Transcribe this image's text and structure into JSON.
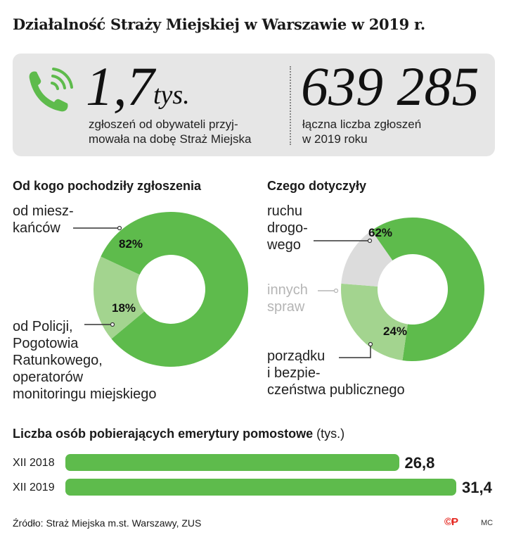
{
  "title": "Działalność Straży Miejskiej w Warszawie w 2019 r.",
  "stats": {
    "calls_per_day": {
      "number": "1,7",
      "unit": "tys.",
      "description_line1": "zgłoszeń od obywateli przyj-",
      "description_line2": "mowała na dobę Straż Miejska"
    },
    "total_calls": {
      "number": "639 285",
      "description_line1": "łączna liczba zgłoszeń",
      "description_line2": "w 2019 roku"
    }
  },
  "colors": {
    "accent_green": "#5ebb4c",
    "light_green": "#a3d48f",
    "grey": "#dcdcdc",
    "panel": "#e6e6e6",
    "logo_red": "#e5261f"
  },
  "chart_data": [
    {
      "type": "pie",
      "variant": "donut",
      "title": "Od kogo pochodziły zgłoszenia",
      "slices": [
        {
          "label_lines": [
            "od miesz-",
            "kańców"
          ],
          "value": 82,
          "value_label": "82%",
          "color": "#5ebb4c"
        },
        {
          "label_lines": [
            "od Policji,",
            "Pogotowia",
            "Ratunkowego,",
            "operatorów",
            "monitoringu miejskiego"
          ],
          "value": 18,
          "value_label": "18%",
          "color": "#a3d48f"
        }
      ]
    },
    {
      "type": "pie",
      "variant": "donut",
      "title": "Czego dotyczyły",
      "slices": [
        {
          "label_lines": [
            "ruchu",
            "drogo-",
            "wego"
          ],
          "value": 62,
          "value_label": "62%",
          "color": "#5ebb4c"
        },
        {
          "label_lines": [
            "porządku",
            "i bezpie-",
            "czeństwa publicznego"
          ],
          "value": 24,
          "value_label": "24%",
          "color": "#a3d48f"
        },
        {
          "label_lines": [
            "innych",
            "spraw"
          ],
          "value": 14,
          "value_label": "",
          "color": "#dcdcdc"
        }
      ]
    },
    {
      "type": "bar",
      "orientation": "horizontal",
      "title": "Liczba osób pobierających emerytury pomostowe",
      "unit": "(tys.)",
      "categories": [
        "XII 2018",
        "XII 2019"
      ],
      "values": [
        26.8,
        31.4
      ],
      "value_labels": [
        "26,8",
        "31,4"
      ],
      "color": "#5ebb4c"
    }
  ],
  "footer": {
    "source": "Źródło: Straż Miejska m.st. Warszawy, ZUS",
    "logo": "©P",
    "credit": "MC"
  }
}
